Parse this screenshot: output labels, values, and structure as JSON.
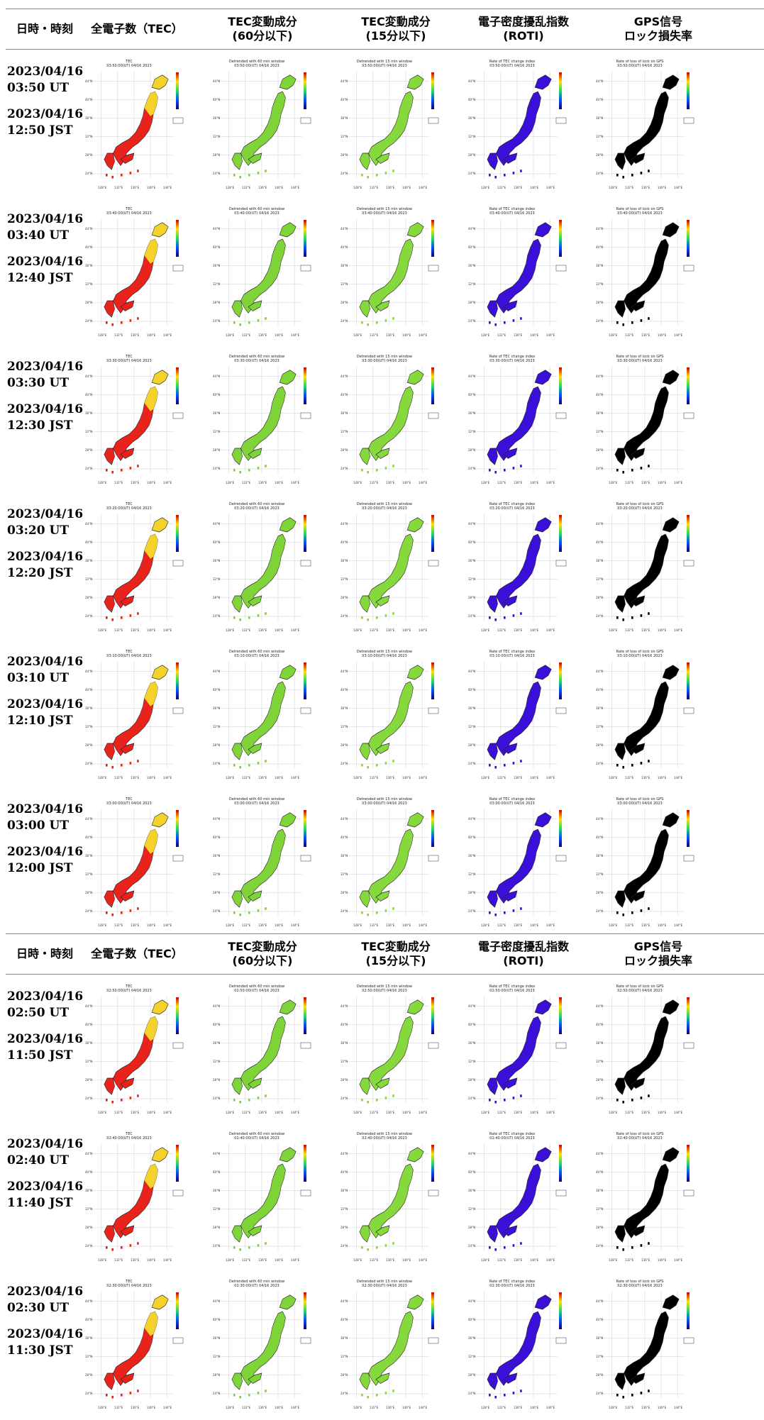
{
  "headers": {
    "datetime": "日時・時刻",
    "tec": "全電子数（TEC）",
    "tec60": "TEC変動成分\n(60分以下)",
    "tec15": "TEC変動成分\n(15分以下)",
    "roti": "電子密度擾乱指数\n(ROTI)",
    "gps": "GPS信号\nロック損失率"
  },
  "panel_titles": {
    "tec": "TEC",
    "tec60": "Detrended with 60 min window",
    "tec15": "Detrended with 15 min window",
    "roti": "Rate of TEC change index",
    "gps": "Rate of loss of lock on GPS"
  },
  "lat_ticks": [
    "44°N",
    "40°N",
    "36°N",
    "32°N",
    "28°N",
    "24°N"
  ],
  "lon_ticks": [
    "128°E",
    "132°E",
    "136°E",
    "140°E",
    "144°E"
  ],
  "colors": {
    "tec": "#e8231c",
    "tec_north": "#f5d22a",
    "tec60": "#7fd43a",
    "tec15": "#86d93c",
    "roti": "#3a10d8",
    "gps": "#000000"
  },
  "section1": [
    {
      "ut_date": "2023/04/16",
      "ut": "03:50 UT",
      "jst_date": "2023/04/16",
      "jst": "12:50 JST",
      "stamp": "03:50:00(UT) 04/16 2023"
    },
    {
      "ut_date": "2023/04/16",
      "ut": "03:40 UT",
      "jst_date": "2023/04/16",
      "jst": "12:40 JST",
      "stamp": "03:40:00(UT) 04/16 2023"
    },
    {
      "ut_date": "2023/04/16",
      "ut": "03:30 UT",
      "jst_date": "2023/04/16",
      "jst": "12:30 JST",
      "stamp": "03:30:00(UT) 04/16 2023"
    },
    {
      "ut_date": "2023/04/16",
      "ut": "03:20 UT",
      "jst_date": "2023/04/16",
      "jst": "12:20 JST",
      "stamp": "03:20:00(UT) 04/16 2023"
    },
    {
      "ut_date": "2023/04/16",
      "ut": "03:10 UT",
      "jst_date": "2023/04/16",
      "jst": "12:10 JST",
      "stamp": "03:10:00(UT) 04/16 2023"
    },
    {
      "ut_date": "2023/04/16",
      "ut": "03:00 UT",
      "jst_date": "2023/04/16",
      "jst": "12:00 JST",
      "stamp": "03:00:00(UT) 04/16 2023"
    }
  ],
  "section2": [
    {
      "ut_date": "2023/04/16",
      "ut": "02:50 UT",
      "jst_date": "2023/04/16",
      "jst": "11:50 JST",
      "stamp": "02:50:00(UT) 04/16 2023"
    },
    {
      "ut_date": "2023/04/16",
      "ut": "02:40 UT",
      "jst_date": "2023/04/16",
      "jst": "11:40 JST",
      "stamp": "02:40:00(UT) 04/16 2023"
    },
    {
      "ut_date": "2023/04/16",
      "ut": "02:30 UT",
      "jst_date": "2023/04/16",
      "jst": "11:30 JST",
      "stamp": "02:30:00(UT) 04/16 2023"
    }
  ]
}
